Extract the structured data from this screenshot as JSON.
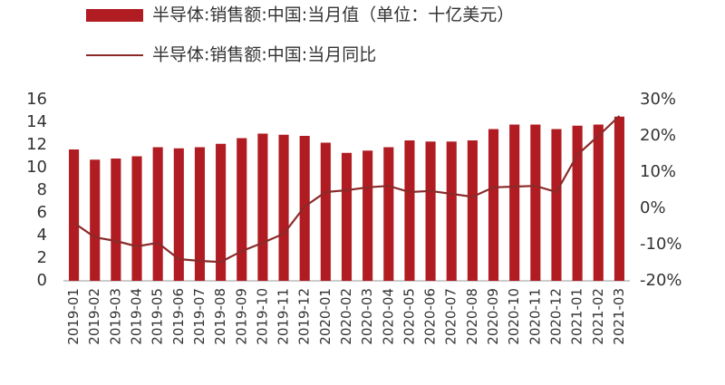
{
  "chart_data": {
    "type": "bar_line",
    "categories": [
      "2019-01",
      "2019-02",
      "2019-03",
      "2019-04",
      "2019-05",
      "2019-06",
      "2019-07",
      "2019-08",
      "2019-09",
      "2019-10",
      "2019-11",
      "2019-12",
      "2020-01",
      "2020-02",
      "2020-03",
      "2020-04",
      "2020-05",
      "2020-06",
      "2020-07",
      "2020-08",
      "2020-09",
      "2020-10",
      "2020-11",
      "2020-12",
      "2021-01",
      "2021-02",
      "2021-03"
    ],
    "series": [
      {
        "name": "半导体:销售额:中国:当月值（单位：十亿美元）",
        "type": "bar",
        "color": "#b01c22",
        "values": [
          11.6,
          10.7,
          10.8,
          11.0,
          11.8,
          11.7,
          11.8,
          12.1,
          12.6,
          13.0,
          12.9,
          12.8,
          12.2,
          11.3,
          11.5,
          11.8,
          12.4,
          12.3,
          12.3,
          12.4,
          13.4,
          13.8,
          13.8,
          13.4,
          13.7,
          13.8,
          14.5
        ]
      },
      {
        "name": "半导体:销售额:中国:当月同比",
        "type": "line",
        "axis": "y2",
        "color": "#8b2a2a",
        "values": [
          -4,
          -8,
          -9,
          -10.5,
          -9.5,
          -14,
          -14.5,
          -14.8,
          -11.8,
          -9.5,
          -7,
          0.5,
          4.5,
          5,
          5.8,
          6.2,
          4.5,
          4.8,
          4,
          3.2,
          5.8,
          6,
          6.2,
          4.5,
          14.8,
          20,
          25.5
        ]
      }
    ],
    "ylim": [
      0,
      16
    ],
    "yticks": [
      0,
      2,
      4,
      6,
      8,
      10,
      12,
      14,
      16
    ],
    "y2lim": [
      -20,
      30
    ],
    "y2ticks": [
      {
        "value": -20,
        "label": "-20%"
      },
      {
        "value": -10,
        "label": "-10%"
      },
      {
        "value": 0,
        "label": "0%"
      },
      {
        "value": 10,
        "label": "10%"
      },
      {
        "value": 20,
        "label": "20%"
      },
      {
        "value": 30,
        "label": "30%"
      }
    ]
  }
}
